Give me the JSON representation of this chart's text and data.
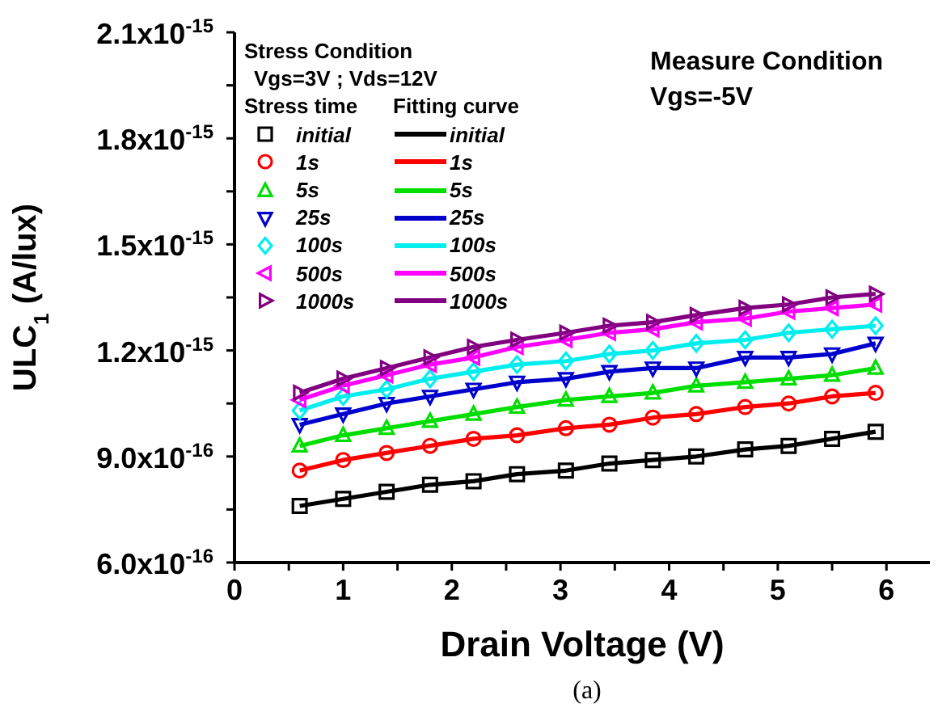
{
  "chart_data": {
    "type": "line",
    "xlabel": "Drain Voltage (V)",
    "ylabel": "ULC$_{1}$ (A/lux)",
    "legend_title": "Stress Condition",
    "legend": "top left",
    "grid": false,
    "x": [
      0.6,
      1.0,
      1.4,
      1.8,
      2.2,
      2.6,
      3.05,
      3.45,
      3.85,
      4.25,
      4.7,
      5.1,
      5.5,
      5.9
    ],
    "xlim": [
      0,
      6.4
    ],
    "xticks": [
      0,
      {
        "value": 0.5,
        "label": null
      },
      1,
      {
        "value": 1.5,
        "label": null
      },
      2,
      {
        "value": 2.5,
        "label": null
      },
      3,
      {
        "value": 3.5,
        "label": null
      },
      4,
      {
        "value": 4.5,
        "label": null
      },
      5,
      {
        "value": 5.5,
        "label": null
      },
      6
    ],
    "ylim": [
      6e-16,
      2.1e-15
    ],
    "yticks": [
      {
        "value": 6e-16,
        "label": "6.0x10$^{-16}$"
      },
      {
        "value": 7.5e-16,
        "label": null
      },
      {
        "value": 9e-16,
        "label": "9.0x10$^{-16}$"
      },
      {
        "value": 1.05e-15,
        "label": null
      },
      {
        "value": 1.2e-15,
        "label": "1.2x10$^{-15}$"
      },
      {
        "value": 1.35e-15,
        "label": null
      },
      {
        "value": 1.5e-15,
        "label": "1.5x10$^{-15}$"
      },
      {
        "value": 1.65e-15,
        "label": null
      },
      {
        "value": 1.8e-15,
        "label": "1.8x10$^{-15}$"
      },
      {
        "value": 1.95e-15,
        "label": null
      },
      {
        "value": 2.1e-15,
        "label": "2.1x10$^{-15}$"
      }
    ],
    "series": [
      {
        "name": "initial",
        "type": "scatter",
        "marker": "square",
        "color": "#000000",
        "values": [
          7.6e-16,
          7.8e-16,
          8e-16,
          8.2e-16,
          8.3e-16,
          8.5e-16,
          8.6e-16,
          8.8e-16,
          8.9e-16,
          9e-16,
          9.2e-16,
          9.3e-16,
          9.5e-16,
          9.7e-16
        ]
      },
      {
        "name": "1s",
        "type": "scatter",
        "marker": "circle",
        "color": "#ff0000",
        "values": [
          8.6e-16,
          8.9e-16,
          9.1e-16,
          9.3e-16,
          9.5e-16,
          9.6e-16,
          9.8e-16,
          9.9e-16,
          1.01e-15,
          1.02e-15,
          1.04e-15,
          1.05e-15,
          1.07e-15,
          1.08e-15
        ]
      },
      {
        "name": "5s",
        "type": "scatter",
        "marker": "triangle",
        "color": "#00dd00",
        "values": [
          9.3e-16,
          9.6e-16,
          9.8e-16,
          1e-15,
          1.02e-15,
          1.04e-15,
          1.06e-15,
          1.07e-15,
          1.08e-15,
          1.1e-15,
          1.11e-15,
          1.12e-15,
          1.13e-15,
          1.15e-15
        ]
      },
      {
        "name": "25s",
        "type": "scatter",
        "marker": "triangle-down",
        "color": "#0000cc",
        "values": [
          9.9e-16,
          1.02e-15,
          1.05e-15,
          1.07e-15,
          1.09e-15,
          1.11e-15,
          1.12e-15,
          1.14e-15,
          1.15e-15,
          1.15e-15,
          1.18e-15,
          1.18e-15,
          1.19e-15,
          1.22e-15
        ]
      },
      {
        "name": "100s",
        "type": "scatter",
        "marker": "diamond",
        "color": "#00eeee",
        "values": [
          1.03e-15,
          1.07e-15,
          1.09e-15,
          1.12e-15,
          1.14e-15,
          1.16e-15,
          1.17e-15,
          1.19e-15,
          1.2e-15,
          1.22e-15,
          1.23e-15,
          1.25e-15,
          1.26e-15,
          1.27e-15
        ]
      },
      {
        "name": "500s",
        "type": "scatter",
        "marker": "triangle-left",
        "color": "#ff00ff",
        "values": [
          1.06e-15,
          1.1e-15,
          1.13e-15,
          1.16e-15,
          1.18e-15,
          1.21e-15,
          1.23e-15,
          1.25e-15,
          1.26e-15,
          1.28e-15,
          1.29e-15,
          1.31e-15,
          1.32e-15,
          1.33e-15
        ]
      },
      {
        "name": "1000s",
        "type": "scatter",
        "marker": "triangle-right",
        "color": "#800080",
        "values": [
          1.08e-15,
          1.12e-15,
          1.15e-15,
          1.18e-15,
          1.21e-15,
          1.23e-15,
          1.25e-15,
          1.27e-15,
          1.28e-15,
          1.3e-15,
          1.32e-15,
          1.33e-15,
          1.35e-15,
          1.36e-15
        ]
      },
      {
        "name": "initial",
        "type": "line",
        "color": "#000000",
        "values": [
          7.6e-16,
          7.8e-16,
          8e-16,
          8.2e-16,
          8.3e-16,
          8.5e-16,
          8.6e-16,
          8.8e-16,
          8.9e-16,
          9e-16,
          9.2e-16,
          9.3e-16,
          9.5e-16,
          9.7e-16
        ]
      },
      {
        "name": "1s",
        "type": "line",
        "color": "#ff0000",
        "values": [
          8.6e-16,
          8.9e-16,
          9.1e-16,
          9.3e-16,
          9.5e-16,
          9.6e-16,
          9.8e-16,
          9.9e-16,
          1.01e-15,
          1.02e-15,
          1.04e-15,
          1.05e-15,
          1.07e-15,
          1.08e-15
        ]
      },
      {
        "name": "5s",
        "type": "line",
        "color": "#00dd00",
        "values": [
          9.3e-16,
          9.6e-16,
          9.8e-16,
          1e-15,
          1.02e-15,
          1.04e-15,
          1.06e-15,
          1.07e-15,
          1.08e-15,
          1.1e-15,
          1.11e-15,
          1.12e-15,
          1.13e-15,
          1.15e-15
        ]
      },
      {
        "name": "25s",
        "type": "line",
        "color": "#0000cc",
        "values": [
          9.9e-16,
          1.02e-15,
          1.05e-15,
          1.07e-15,
          1.09e-15,
          1.11e-15,
          1.12e-15,
          1.14e-15,
          1.15e-15,
          1.15e-15,
          1.18e-15,
          1.18e-15,
          1.19e-15,
          1.22e-15
        ]
      },
      {
        "name": "100s",
        "type": "line",
        "color": "#00eeee",
        "values": [
          1.03e-15,
          1.07e-15,
          1.09e-15,
          1.12e-15,
          1.14e-15,
          1.16e-15,
          1.17e-15,
          1.19e-15,
          1.2e-15,
          1.22e-15,
          1.23e-15,
          1.25e-15,
          1.26e-15,
          1.27e-15
        ]
      },
      {
        "name": "500s",
        "type": "line",
        "color": "#ff00ff",
        "values": [
          1.06e-15,
          1.1e-15,
          1.13e-15,
          1.16e-15,
          1.18e-15,
          1.21e-15,
          1.23e-15,
          1.25e-15,
          1.26e-15,
          1.28e-15,
          1.29e-15,
          1.31e-15,
          1.32e-15,
          1.33e-15
        ]
      },
      {
        "name": "1000s",
        "type": "line",
        "color": "#800080",
        "values": [
          1.08e-15,
          1.12e-15,
          1.15e-15,
          1.18e-15,
          1.21e-15,
          1.23e-15,
          1.25e-15,
          1.27e-15,
          1.28e-15,
          1.3e-15,
          1.32e-15,
          1.33e-15,
          1.35e-15,
          1.36e-15
        ]
      }
    ],
    "annotations": [
      "Vgs=3V ; Vds=12V",
      "Stress time",
      "Fitting curve",
      "Measure Condition",
      "Vgs=-5V",
      "(a)"
    ]
  }
}
